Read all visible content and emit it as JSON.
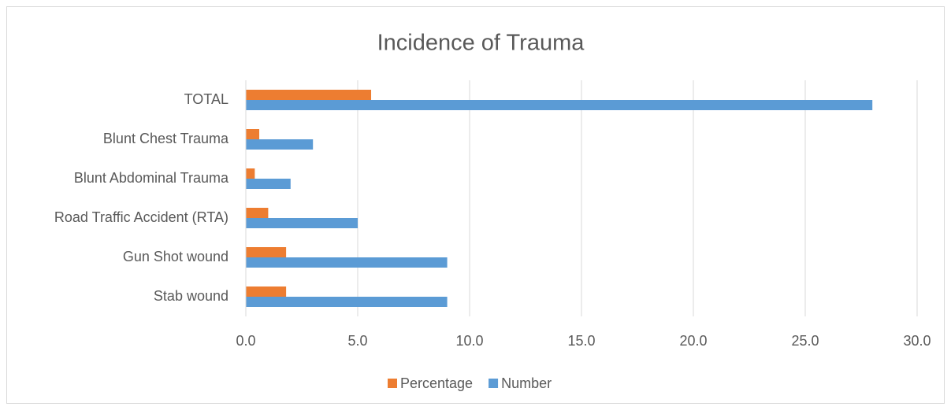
{
  "chart_data": {
    "type": "bar",
    "orientation": "horizontal",
    "title": "Incidence of Trauma",
    "categories": [
      "Stab wound",
      "Gun Shot wound",
      "Road Traffic Accident (RTA)",
      "Blunt Abdominal Trauma",
      "Blunt Chest Trauma",
      "TOTAL"
    ],
    "series": [
      {
        "name": "Percentage",
        "color": "#ED7D31",
        "values": [
          1.8,
          1.8,
          1.0,
          0.4,
          0.6,
          5.6
        ]
      },
      {
        "name": "Number",
        "color": "#5B9BD5",
        "values": [
          9,
          9,
          5,
          2,
          3,
          28
        ]
      }
    ],
    "xlim": [
      0,
      30
    ],
    "xticks": [
      {
        "value": 0,
        "label": "0.0"
      },
      {
        "value": 5,
        "label": "5.0"
      },
      {
        "value": 10,
        "label": "10.0"
      },
      {
        "value": 15,
        "label": "15.0"
      },
      {
        "value": 20,
        "label": "20.0"
      },
      {
        "value": 25,
        "label": "25.0"
      },
      {
        "value": 30,
        "label": "30.0"
      }
    ],
    "grid": true,
    "legend": "bottom"
  }
}
